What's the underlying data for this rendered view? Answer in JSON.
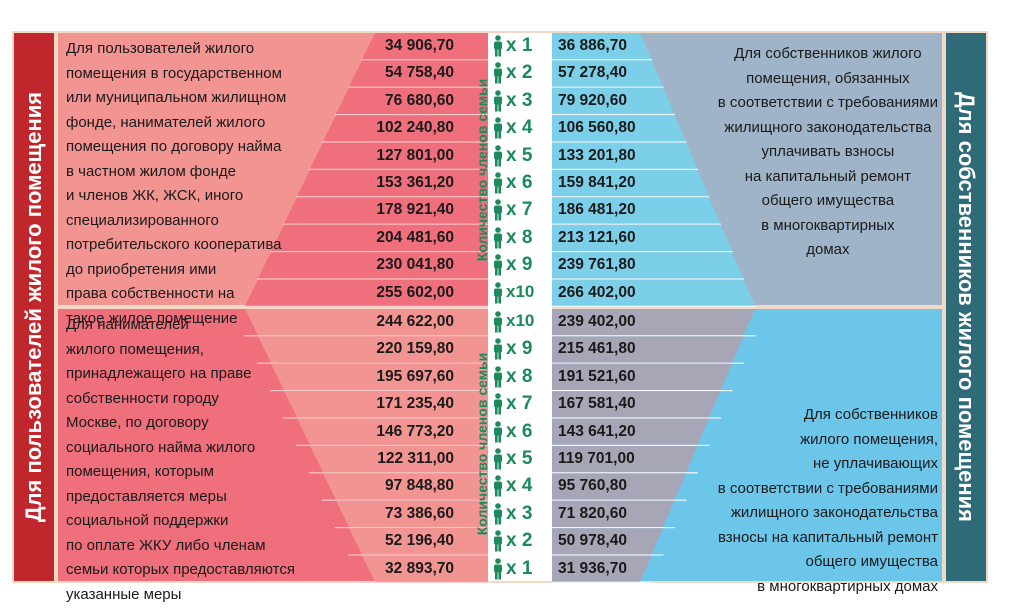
{
  "left_title": "Для пользователей жилого помещения",
  "right_title": "Для собственников жилого помещения",
  "middle_label": "Количество членов семьи",
  "multiplier_prefix": "x",
  "colors": {
    "left_title_bg": "#c0272d",
    "right_title_bg": "#2e6a78",
    "top_left": "#f29492",
    "bottom_left": "#ef6f7c",
    "top_right_row": "#7ccfe8",
    "bottom_right_row": "#a6a6b6",
    "top_right_desc": "#9fb4c8",
    "bottom_right_desc": "#6cc6ea",
    "accent_green": "#1c8a5a"
  },
  "top_left_text": [
    "Для пользователей жилого",
    "помещения в государственном",
    "или муниципальном жилищном",
    "фонде, нанимателей жилого",
    "помещения по договору найма",
    "в частном жилом фонде",
    "и членов ЖК, ЖСК, иного",
    "специализированного",
    "потребительского кооператива",
    "до приобретения ими",
    "права собственности на",
    "такое жилое помещение"
  ],
  "bottom_left_text": [
    "Для нанимателей",
    "жилого помещения,",
    "принадлежащего на праве",
    "собственности городу",
    "Москве, по договору",
    "социального найма жилого",
    "помещения, которым",
    "предоставляется меры",
    "социальной поддержки",
    "по оплате ЖКУ либо членам",
    "семьи которых предоставляются",
    "указанные меры"
  ],
  "top_right_text": [
    "Для собственников жилого",
    "помещения, обязанных",
    "в соответствии с требованиями",
    "жилищного законодательства",
    "уплачивать взносы",
    "на капитальный ремонт",
    "общего имущества",
    "в многоквартирных",
    "домах"
  ],
  "bottom_right_text": [
    "Для собственников",
    "жилого помещения,",
    "не уплачивающих",
    "в соответствии с требованиями",
    "жилищного законодательства",
    "взносы на капитальный ремонт",
    "общего имущества",
    "в многоквартирных домах"
  ],
  "top_rows": [
    {
      "members": 1,
      "left": "34 906,70",
      "right": "36 886,70"
    },
    {
      "members": 2,
      "left": "54 758,40",
      "right": "57 278,40"
    },
    {
      "members": 3,
      "left": "76 680,60",
      "right": "79 920,60"
    },
    {
      "members": 4,
      "left": "102 240,80",
      "right": "106 560,80"
    },
    {
      "members": 5,
      "left": "127 801,00",
      "right": "133 201,80"
    },
    {
      "members": 6,
      "left": "153 361,20",
      "right": "159 841,20"
    },
    {
      "members": 7,
      "left": "178 921,40",
      "right": "186 481,20"
    },
    {
      "members": 8,
      "left": "204 481,60",
      "right": "213 121,60"
    },
    {
      "members": 9,
      "left": "230 041,80",
      "right": "239 761,80"
    },
    {
      "members": 10,
      "left": "255 602,00",
      "right": "266 402,00"
    }
  ],
  "bottom_rows": [
    {
      "members": 10,
      "left": "244 622,00",
      "right": "239 402,00"
    },
    {
      "members": 9,
      "left": "220 159,80",
      "right": "215 461,80"
    },
    {
      "members": 8,
      "left": "195 697,60",
      "right": "191 521,60"
    },
    {
      "members": 7,
      "left": "171 235,40",
      "right": "167 581,40"
    },
    {
      "members": 6,
      "left": "146 773,20",
      "right": "143 641,20"
    },
    {
      "members": 5,
      "left": "122 311,00",
      "right": "119 701,00"
    },
    {
      "members": 4,
      "left": "97 848,80",
      "right": "95 760,80"
    },
    {
      "members": 3,
      "left": "73 386,60",
      "right": "71 820,60"
    },
    {
      "members": 2,
      "left": "52 196,40",
      "right": "50 978,40"
    },
    {
      "members": 1,
      "left": "32 893,70",
      "right": "31 936,70"
    }
  ]
}
